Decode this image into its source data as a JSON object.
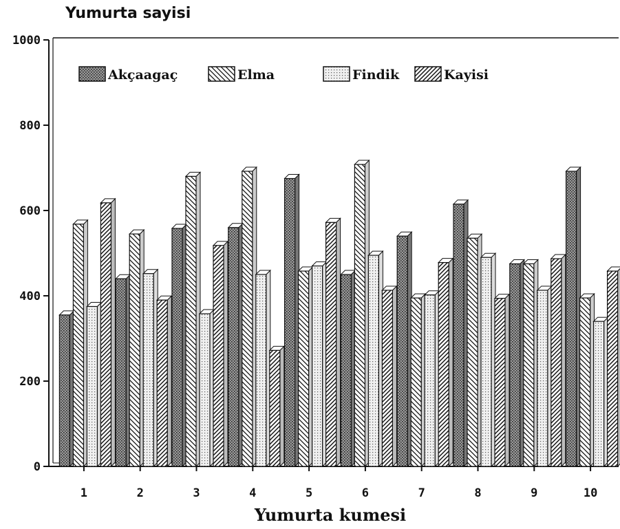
{
  "chart_data": {
    "type": "bar",
    "title": "",
    "ylabel": "Yumurta sayisi",
    "xlabel": "Yumurta kumesi",
    "ylim": [
      0,
      1000
    ],
    "yticks": [
      "0",
      "200",
      "400",
      "600",
      "800",
      "1000"
    ],
    "categories": [
      "1",
      "2",
      "3",
      "4",
      "5",
      "6",
      "7",
      "8",
      "9",
      "10"
    ],
    "legend_position": "top",
    "grid": false,
    "series": [
      {
        "name": "Akçaagaç",
        "pattern": "dense-dots",
        "values": [
          355,
          440,
          558,
          560,
          675,
          450,
          540,
          615,
          475,
          692
        ]
      },
      {
        "name": "Elma",
        "pattern": "back-diagonal",
        "values": [
          568,
          545,
          680,
          692,
          458,
          708,
          395,
          535,
          475,
          395
        ]
      },
      {
        "name": "Findik",
        "pattern": "light-dots",
        "values": [
          375,
          452,
          358,
          450,
          470,
          495,
          402,
          490,
          413,
          340
        ]
      },
      {
        "name": "Kayisi",
        "pattern": "forward-diagonal",
        "values": [
          618,
          390,
          518,
          272,
          572,
          413,
          478,
          394,
          487,
          458
        ]
      }
    ]
  }
}
